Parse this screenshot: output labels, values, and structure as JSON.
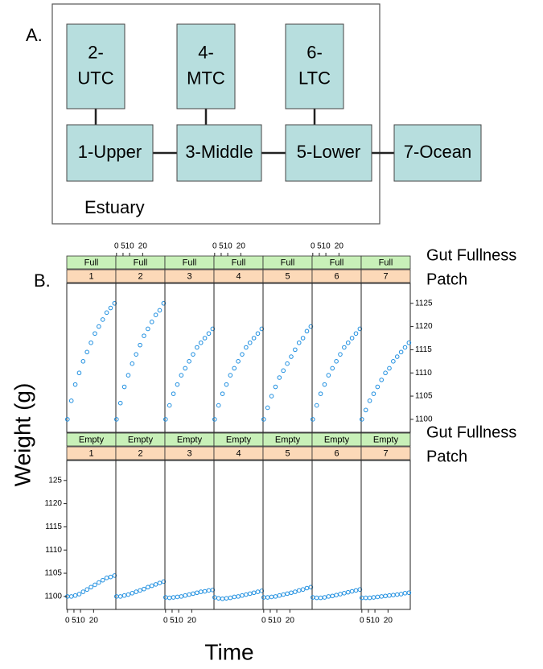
{
  "diagram": {
    "label": "A.",
    "region_label": "Estuary",
    "nodes": [
      {
        "lines": [
          "2-",
          "UTC"
        ]
      },
      {
        "lines": [
          "4-",
          "MTC"
        ]
      },
      {
        "lines": [
          "6-",
          "LTC"
        ]
      },
      {
        "lines": [
          "1-Upper"
        ]
      },
      {
        "lines": [
          "3-Middle"
        ]
      },
      {
        "lines": [
          "5-Lower"
        ]
      },
      {
        "lines": [
          "7-Ocean"
        ]
      }
    ]
  },
  "chart_data": {
    "type": "scatter",
    "label": "B.",
    "x_label": "Time",
    "y_label": "Weight (g)",
    "strip_names": [
      "Gut Fullness",
      "Patch"
    ],
    "color": "#1f8fe0",
    "x": [
      0,
      3,
      6,
      9,
      12,
      15,
      18,
      21,
      24,
      27,
      30,
      33,
      36
    ],
    "xlim": [
      -0.5,
      37
    ],
    "xticks": [
      0,
      5,
      10,
      20
    ],
    "ylim": [
      1097.2,
      1129.3
    ],
    "yticks": [
      1100,
      1105,
      1110,
      1115,
      1120,
      1125
    ],
    "yticks_left": [
      1100,
      1105,
      1110,
      1115,
      1120,
      {
        "value": 1125,
        "label": "125"
      }
    ],
    "rows": [
      {
        "fullness": "Full",
        "panels": [
          {
            "patch": "1",
            "values": [
              1100,
              1104,
              1107.5,
              1110,
              1112.5,
              1114.5,
              1116.5,
              1118.5,
              1120,
              1121.5,
              1123,
              1124,
              1125
            ]
          },
          {
            "patch": "2",
            "values": [
              1100,
              1103.5,
              1107,
              1109.5,
              1112,
              1114,
              1116,
              1118,
              1119.5,
              1121,
              1122.5,
              1123.5,
              1125
            ]
          },
          {
            "patch": "3",
            "values": [
              1100,
              1103,
              1105.5,
              1107.5,
              1109.5,
              1111,
              1112.5,
              1114,
              1115.5,
              1116.5,
              1117.5,
              1118.5,
              1119.5
            ]
          },
          {
            "patch": "4",
            "values": [
              1100,
              1103,
              1105.5,
              1107.5,
              1109.5,
              1111,
              1112.5,
              1114,
              1115.5,
              1116.5,
              1117.5,
              1118.5,
              1119.5
            ]
          },
          {
            "patch": "5",
            "values": [
              1100,
              1102.5,
              1105,
              1107,
              1109,
              1110.5,
              1112,
              1113.5,
              1115,
              1116.5,
              1117.5,
              1119,
              1120
            ]
          },
          {
            "patch": "6",
            "values": [
              1100,
              1103,
              1105.5,
              1107.5,
              1109.5,
              1111,
              1112.5,
              1114,
              1115.5,
              1116.5,
              1117.5,
              1118.5,
              1119.5
            ]
          },
          {
            "patch": "7",
            "values": [
              1100,
              1102,
              1104,
              1105.5,
              1107,
              1108.5,
              1110,
              1111,
              1112.5,
              1113.5,
              1114.5,
              1115.5,
              1116.5
            ]
          }
        ]
      },
      {
        "fullness": "Empty",
        "panels": [
          {
            "patch": "1",
            "values": [
              1100,
              1100,
              1100.2,
              1100.5,
              1101,
              1101.5,
              1102,
              1102.5,
              1103,
              1103.5,
              1104,
              1104.2,
              1104.5
            ]
          },
          {
            "patch": "2",
            "values": [
              1100,
              1100,
              1100.2,
              1100.4,
              1100.7,
              1101,
              1101.3,
              1101.6,
              1102,
              1102.3,
              1102.6,
              1102.9,
              1103.2
            ]
          },
          {
            "patch": "3",
            "values": [
              1099.8,
              1099.7,
              1099.8,
              1099.9,
              1100,
              1100.2,
              1100.4,
              1100.6,
              1100.8,
              1101,
              1101.1,
              1101.3,
              1101.4
            ]
          },
          {
            "patch": "4",
            "values": [
              1099.8,
              1099.6,
              1099.5,
              1099.6,
              1099.7,
              1099.9,
              1100,
              1100.2,
              1100.4,
              1100.6,
              1100.8,
              1101,
              1101.2
            ]
          },
          {
            "patch": "5",
            "values": [
              1099.8,
              1099.8,
              1099.9,
              1100,
              1100.2,
              1100.4,
              1100.6,
              1100.8,
              1101,
              1101.3,
              1101.5,
              1101.8,
              1102
            ]
          },
          {
            "patch": "6",
            "values": [
              1099.8,
              1099.7,
              1099.7,
              1099.8,
              1100,
              1100.1,
              1100.3,
              1100.5,
              1100.7,
              1100.9,
              1101.1,
              1101.3,
              1101.5
            ]
          },
          {
            "patch": "7",
            "values": [
              1099.7,
              1099.7,
              1099.7,
              1099.8,
              1099.9,
              1100,
              1100.1,
              1100.2,
              1100.3,
              1100.4,
              1100.5,
              1100.7,
              1100.8
            ]
          }
        ]
      }
    ]
  }
}
